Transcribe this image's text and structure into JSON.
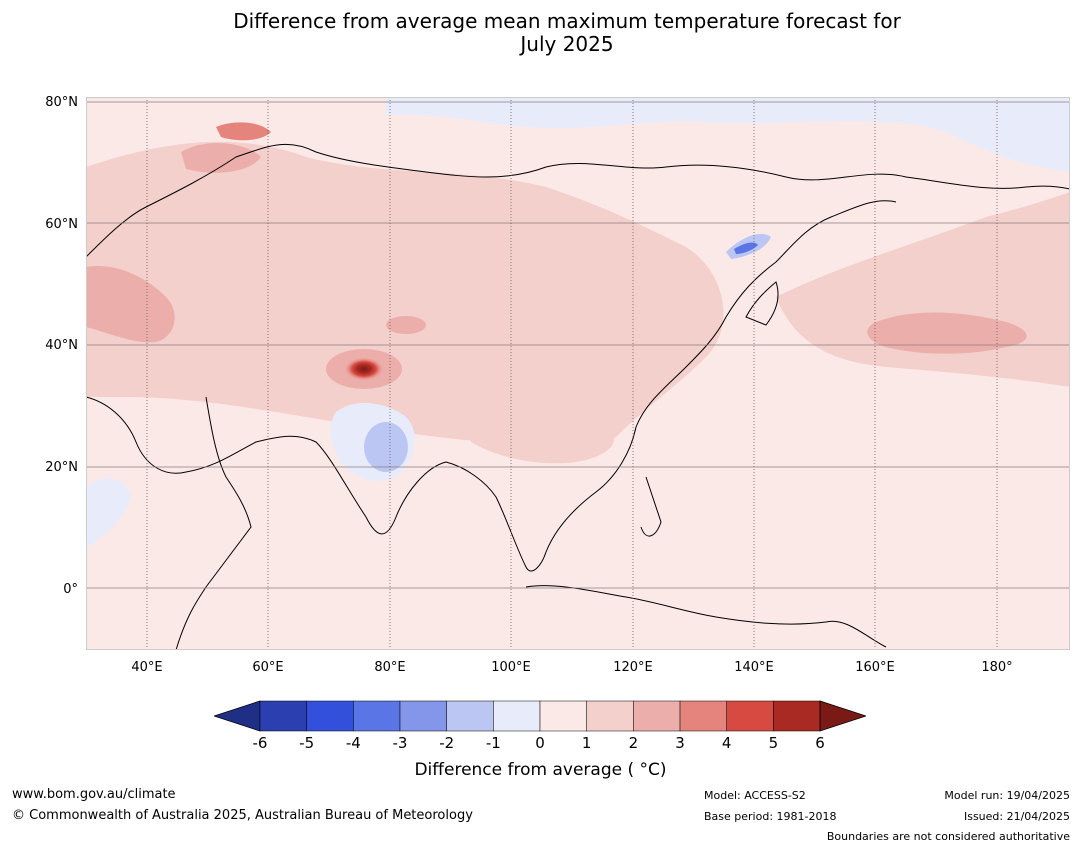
{
  "title_line1": "Difference from average mean maximum temperature forecast for",
  "title_line2": "July 2025",
  "lat_labels": [
    "80°N",
    "60°N",
    "40°N",
    "20°N",
    "0°"
  ],
  "lon_labels": [
    "40°E",
    "60°E",
    "80°E",
    "100°E",
    "120°E",
    "140°E",
    "160°E",
    "180°"
  ],
  "colorbar": {
    "ticks": [
      "-6",
      "-5",
      "-4",
      "-3",
      "-2",
      "-1",
      "0",
      "1",
      "2",
      "3",
      "4",
      "5",
      "6"
    ],
    "colors": [
      "#1f2f86",
      "#2b3fb0",
      "#3350dd",
      "#5a75e6",
      "#8496ea",
      "#bcc6f2",
      "#e8ecfa",
      "#fbe9e8",
      "#f4d0cd",
      "#ecaeaa",
      "#e5837d",
      "#d74a42",
      "#a92a22",
      "#7a1a15"
    ],
    "label": "Difference from average ( °C)"
  },
  "footer": {
    "url": "www.bom.gov.au/climate",
    "copyright": "© Commonwealth of Australia 2025, Australian Bureau of Meteorology",
    "model": "Model: ACCESS-S2",
    "base_period": "Base period: 1981-2018",
    "model_run": "Model run: 19/04/2025",
    "issued": "Issued: 21/04/2025",
    "disclaimer": "Boundaries are not considered authoritative"
  }
}
